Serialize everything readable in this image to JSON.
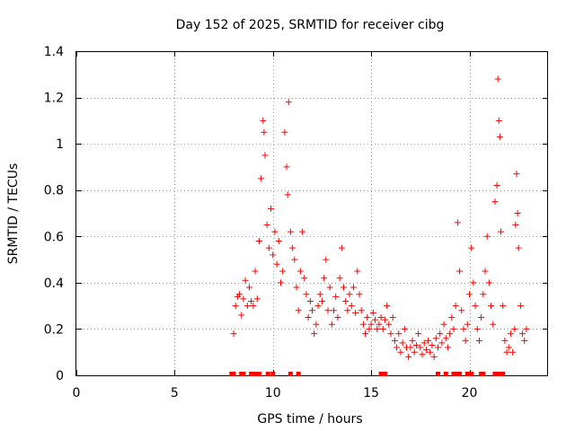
{
  "chart_data": {
    "type": "scatter",
    "title": "Day 152 of 2025, SRMTID for receiver cibg",
    "xlabel": "GPS time / hours",
    "ylabel": "SRMTID / TECUs",
    "xlim": [
      0,
      24
    ],
    "ylim": [
      0,
      1.4
    ],
    "x_ticks": [
      0,
      5,
      10,
      15,
      20
    ],
    "x_tick_labels": [
      "0",
      "5",
      "10",
      "15",
      "20"
    ],
    "y_ticks": [
      0,
      0.2,
      0.4,
      0.6,
      0.8,
      1.0,
      1.2,
      1.4
    ],
    "y_tick_labels": [
      "0",
      "0.2",
      "0.4",
      "0.6",
      "0.8",
      "1",
      "1.2",
      "1.4"
    ],
    "grid": true,
    "marker": "plus",
    "marker_color": "#ff0000",
    "series": [
      {
        "name": "SRMTID",
        "points": [
          [
            8.0,
            0.18
          ],
          [
            8.1,
            0.3
          ],
          [
            8.2,
            0.34
          ],
          [
            8.3,
            0.35
          ],
          [
            8.4,
            0.26
          ],
          [
            8.5,
            0.33
          ],
          [
            8.6,
            0.41
          ],
          [
            8.7,
            0.3
          ],
          [
            8.8,
            0.38
          ],
          [
            8.9,
            0.32
          ],
          [
            9.0,
            0.3
          ],
          [
            9.1,
            0.45
          ],
          [
            9.2,
            0.33
          ],
          [
            9.3,
            0.58
          ],
          [
            9.4,
            0.85
          ],
          [
            9.5,
            1.1
          ],
          [
            9.55,
            1.05
          ],
          [
            9.6,
            0.95
          ],
          [
            9.7,
            0.65
          ],
          [
            9.8,
            0.55
          ],
          [
            9.9,
            0.72
          ],
          [
            10.0,
            0.52
          ],
          [
            10.1,
            0.62
          ],
          [
            10.2,
            0.48
          ],
          [
            10.3,
            0.58
          ],
          [
            10.4,
            0.4
          ],
          [
            10.5,
            0.45
          ],
          [
            10.6,
            1.05
          ],
          [
            10.7,
            0.9
          ],
          [
            10.75,
            0.78
          ],
          [
            10.8,
            1.18
          ],
          [
            10.9,
            0.62
          ],
          [
            11.0,
            0.55
          ],
          [
            11.1,
            0.5
          ],
          [
            11.2,
            0.38
          ],
          [
            11.3,
            0.28
          ],
          [
            11.4,
            0.45
          ],
          [
            11.5,
            0.62
          ],
          [
            11.6,
            0.42
          ],
          [
            11.7,
            0.35
          ],
          [
            11.8,
            0.25
          ],
          [
            11.9,
            0.32
          ],
          [
            12.0,
            0.28
          ],
          [
            12.1,
            0.18
          ],
          [
            12.2,
            0.22
          ],
          [
            12.3,
            0.3
          ],
          [
            12.4,
            0.35
          ],
          [
            12.5,
            0.32
          ],
          [
            12.6,
            0.42
          ],
          [
            12.7,
            0.5
          ],
          [
            12.8,
            0.28
          ],
          [
            12.9,
            0.38
          ],
          [
            13.0,
            0.22
          ],
          [
            13.1,
            0.28
          ],
          [
            13.2,
            0.34
          ],
          [
            13.3,
            0.25
          ],
          [
            13.4,
            0.42
          ],
          [
            13.5,
            0.55
          ],
          [
            13.6,
            0.38
          ],
          [
            13.7,
            0.32
          ],
          [
            13.8,
            0.28
          ],
          [
            13.9,
            0.35
          ],
          [
            14.0,
            0.3
          ],
          [
            14.1,
            0.38
          ],
          [
            14.2,
            0.27
          ],
          [
            14.3,
            0.45
          ],
          [
            14.4,
            0.35
          ],
          [
            14.5,
            0.28
          ],
          [
            14.6,
            0.22
          ],
          [
            14.7,
            0.18
          ],
          [
            14.8,
            0.25
          ],
          [
            14.9,
            0.2
          ],
          [
            15.0,
            0.22
          ],
          [
            15.1,
            0.27
          ],
          [
            15.2,
            0.24
          ],
          [
            15.3,
            0.2
          ],
          [
            15.4,
            0.22
          ],
          [
            15.5,
            0.25
          ],
          [
            15.6,
            0.2
          ],
          [
            15.7,
            0.24
          ],
          [
            15.8,
            0.3
          ],
          [
            15.9,
            0.22
          ],
          [
            16.0,
            0.18
          ],
          [
            16.1,
            0.25
          ],
          [
            16.2,
            0.15
          ],
          [
            16.3,
            0.12
          ],
          [
            16.4,
            0.18
          ],
          [
            16.5,
            0.1
          ],
          [
            16.6,
            0.14
          ],
          [
            16.7,
            0.2
          ],
          [
            16.8,
            0.12
          ],
          [
            16.9,
            0.08
          ],
          [
            17.0,
            0.12
          ],
          [
            17.1,
            0.15
          ],
          [
            17.2,
            0.1
          ],
          [
            17.3,
            0.13
          ],
          [
            17.4,
            0.18
          ],
          [
            17.5,
            0.12
          ],
          [
            17.6,
            0.09
          ],
          [
            17.7,
            0.14
          ],
          [
            17.8,
            0.11
          ],
          [
            17.9,
            0.15
          ],
          [
            18.0,
            0.1
          ],
          [
            18.1,
            0.13
          ],
          [
            18.2,
            0.08
          ],
          [
            18.3,
            0.16
          ],
          [
            18.4,
            0.12
          ],
          [
            18.5,
            0.18
          ],
          [
            18.6,
            0.14
          ],
          [
            18.7,
            0.22
          ],
          [
            18.8,
            0.16
          ],
          [
            18.9,
            0.12
          ],
          [
            19.0,
            0.18
          ],
          [
            19.1,
            0.25
          ],
          [
            19.2,
            0.2
          ],
          [
            19.3,
            0.3
          ],
          [
            19.4,
            0.66
          ],
          [
            19.5,
            0.45
          ],
          [
            19.6,
            0.28
          ],
          [
            19.7,
            0.2
          ],
          [
            19.8,
            0.15
          ],
          [
            19.9,
            0.22
          ],
          [
            20.0,
            0.35
          ],
          [
            20.1,
            0.55
          ],
          [
            20.2,
            0.4
          ],
          [
            20.3,
            0.3
          ],
          [
            20.4,
            0.2
          ],
          [
            20.5,
            0.15
          ],
          [
            20.6,
            0.25
          ],
          [
            20.7,
            0.35
          ],
          [
            20.8,
            0.45
          ],
          [
            20.9,
            0.6
          ],
          [
            21.0,
            0.4
          ],
          [
            21.1,
            0.3
          ],
          [
            21.2,
            0.22
          ],
          [
            21.3,
            0.75
          ],
          [
            21.4,
            0.82
          ],
          [
            21.45,
            1.28
          ],
          [
            21.5,
            1.1
          ],
          [
            21.55,
            1.03
          ],
          [
            21.6,
            0.62
          ],
          [
            21.7,
            0.3
          ],
          [
            21.8,
            0.15
          ],
          [
            21.9,
            0.1
          ],
          [
            22.0,
            0.12
          ],
          [
            22.1,
            0.18
          ],
          [
            22.2,
            0.1
          ],
          [
            22.3,
            0.2
          ],
          [
            22.35,
            0.65
          ],
          [
            22.4,
            0.87
          ],
          [
            22.45,
            0.7
          ],
          [
            22.5,
            0.55
          ],
          [
            22.6,
            0.3
          ],
          [
            22.7,
            0.18
          ],
          [
            22.8,
            0.15
          ],
          [
            22.9,
            0.2
          ]
        ]
      }
    ],
    "zero_value_x": [
      7.9,
      8.0,
      8.4,
      8.5,
      8.9,
      9.0,
      9.1,
      9.3,
      9.75,
      10.0,
      10.9,
      11.3,
      15.5,
      15.6,
      15.7,
      18.4,
      18.8,
      19.2,
      19.3,
      19.5,
      19.9,
      20.0,
      20.1,
      20.6,
      20.7,
      21.3,
      21.4,
      21.5,
      21.6,
      21.7
    ]
  }
}
